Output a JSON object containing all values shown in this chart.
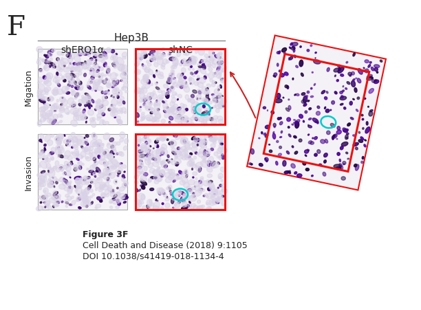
{
  "title_letter": "F",
  "group_label": "Hep3B",
  "col_labels": [
    "shERO1α",
    "shNC"
  ],
  "row_labels": [
    "Migation",
    "Invasion"
  ],
  "line_color": "#888888",
  "red_box_color": "#ee1111",
  "cyan_circle_color": "#00cccc",
  "arrow_color": "#cc2222",
  "fig_caption_lines": [
    "Figure 3F",
    "Cell Death and Disease (2018) 9:1105",
    "DOI 10.1038/s41419-018-1134-4"
  ],
  "background_color": "#ffffff",
  "seed": 42
}
